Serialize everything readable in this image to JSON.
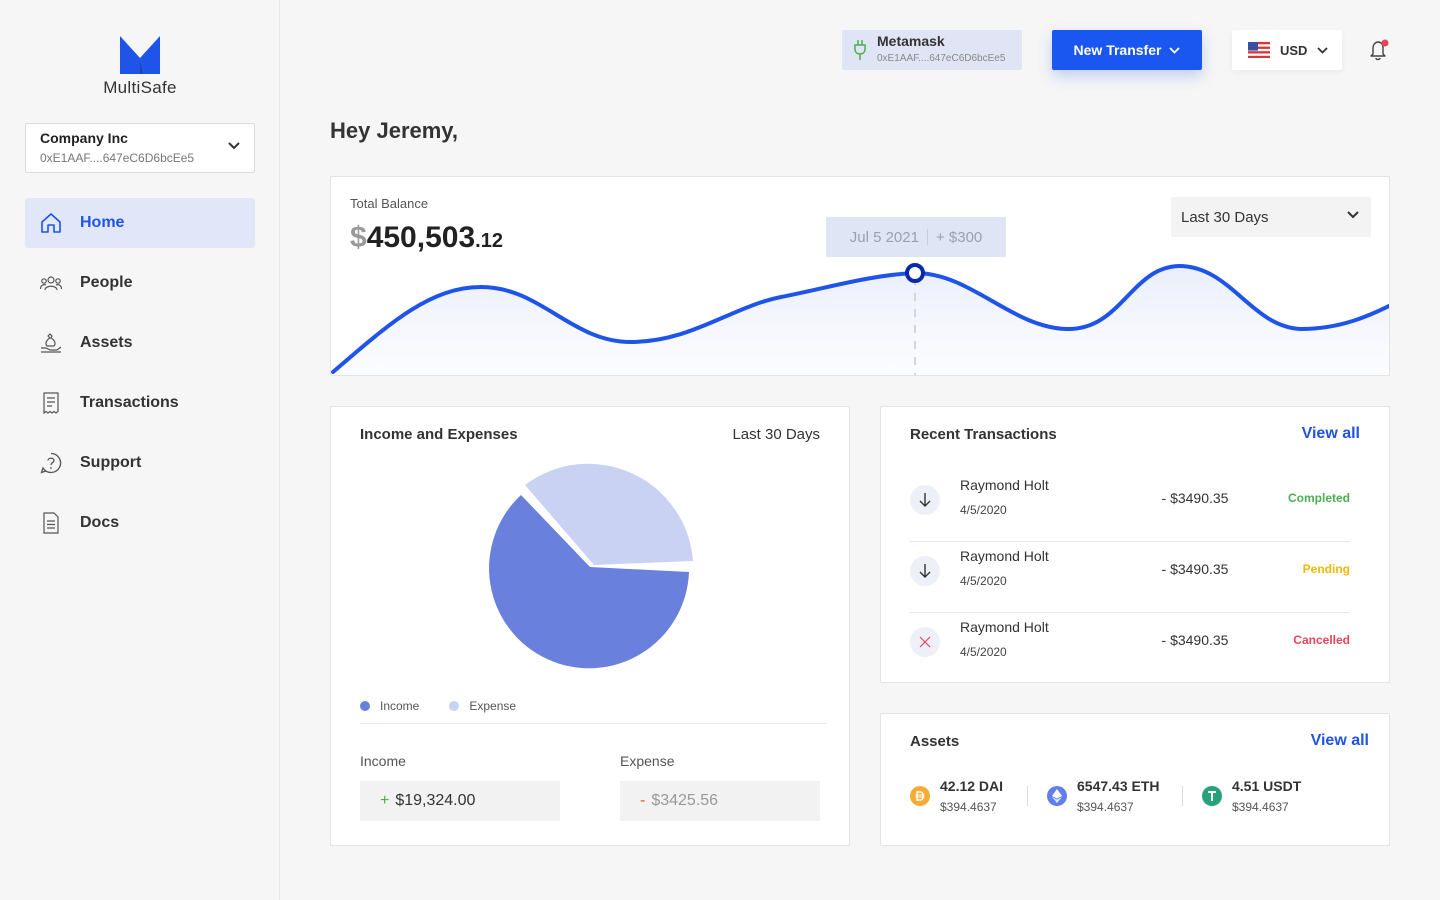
{
  "brand": {
    "name": "MultiSafe",
    "color": "#1f54e8"
  },
  "org": {
    "name": "Company Inc",
    "address": "0xE1AAF....647eC6D6bcEe5"
  },
  "nav": [
    {
      "label": "Home",
      "icon": "home-icon",
      "active": true
    },
    {
      "label": "People",
      "icon": "people-icon"
    },
    {
      "label": "Assets",
      "icon": "assets-icon"
    },
    {
      "label": "Transactions",
      "icon": "receipt-icon"
    },
    {
      "label": "Support",
      "icon": "help-icon"
    },
    {
      "label": "Docs",
      "icon": "document-icon"
    }
  ],
  "wallet": {
    "name": "Metamask",
    "address": "0xE1AAF....647eC6D6bcEe5",
    "icon": "plug-icon"
  },
  "new_transfer_label": "New Transfer",
  "currency": {
    "code": "USD",
    "flag": "us-flag-icon"
  },
  "greeting": "Hey Jeremy,",
  "balance": {
    "label": "Total Balance",
    "currency_symbol": "$",
    "whole": "450,503",
    "cents": ".12",
    "range": "Last 30 Days",
    "tooltip_date": "Jul 5 2021",
    "tooltip_change": "+ $300"
  },
  "income_expenses": {
    "title": "Income and Expenses",
    "range": "Last 30 Days",
    "legend_income": "Income",
    "legend_expense": "Expense",
    "income_label": "Income",
    "income_sign": "+",
    "income_value": "$19,324.00",
    "expense_label": "Expense",
    "expense_sign": "-",
    "expense_value": "$3425.56",
    "colors": {
      "income": "#6a80dd",
      "expense": "#c9d2f2"
    }
  },
  "transactions": {
    "title": "Recent Transactions",
    "view_all": "View all",
    "rows": [
      {
        "name": "Raymond Holt",
        "date": "4/5/2020",
        "amount": "- $3490.35",
        "status": "Completed",
        "status_color": "#4caf50",
        "icon": "arrow-down-icon"
      },
      {
        "name": "Raymond Holt",
        "date": "4/5/2020",
        "amount": "- $3490.35",
        "status": "Pending",
        "status_color": "#f5b700",
        "icon": "arrow-down-icon"
      },
      {
        "name": "Raymond Holt",
        "date": "4/5/2020",
        "amount": "- $3490.35",
        "status": "Cancelled",
        "status_color": "#e8455a",
        "icon": "cross-icon"
      }
    ]
  },
  "assets": {
    "title": "Assets",
    "view_all": "View all",
    "items": [
      {
        "amount": "42.12 DAI",
        "usd": "$394.4637",
        "icon": "dai-icon",
        "color": "#f5ac37"
      },
      {
        "amount": "6547.43 ETH",
        "usd": "$394.4637",
        "icon": "eth-icon",
        "color": "#627eea"
      },
      {
        "amount": "4.51 USDT",
        "usd": "$394.4637",
        "icon": "usdt-icon",
        "color": "#26a17b"
      }
    ]
  }
}
